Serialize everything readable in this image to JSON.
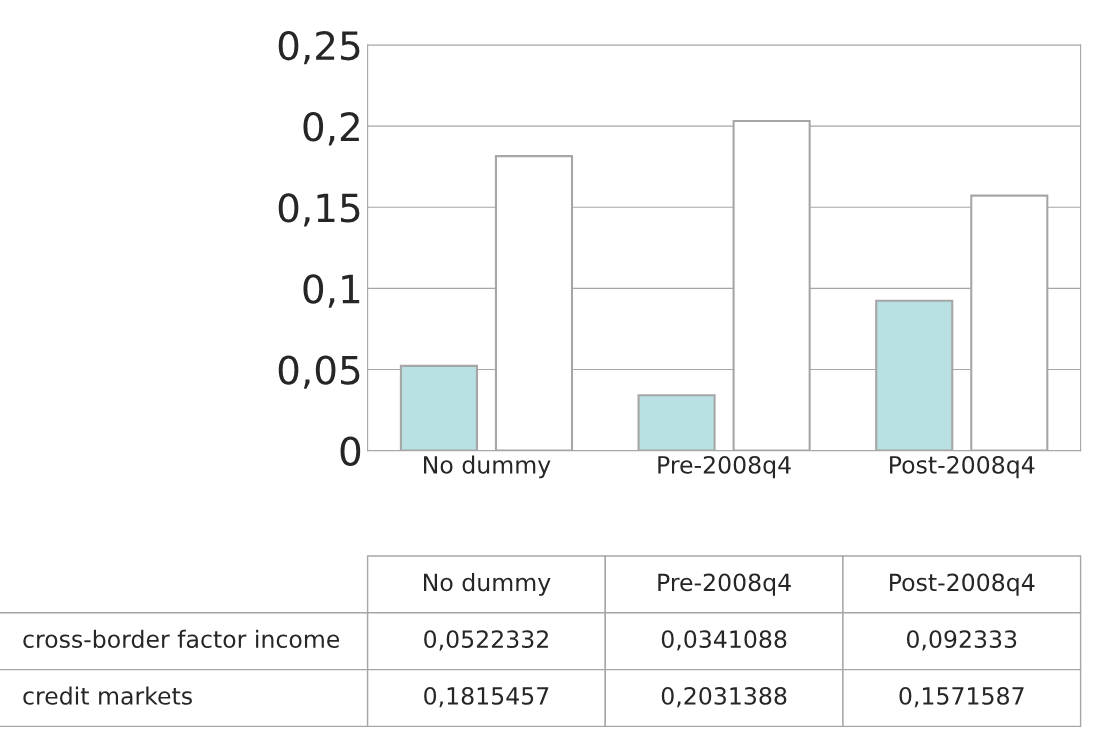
{
  "chart_data": {
    "type": "bar",
    "categories": [
      "No dummy",
      "Pre-2008q4",
      "Post-2008q4"
    ],
    "series": [
      {
        "name": "cross-border factor income",
        "color": "#b9e0e3",
        "values": [
          0.0522332,
          0.0341088,
          0.092333
        ],
        "value_labels": [
          "0,0522332",
          "0,0341088",
          "0,092333"
        ]
      },
      {
        "name": "credit markets",
        "color": "#ffffff",
        "values": [
          0.1815457,
          0.2031388,
          0.1571587
        ],
        "value_labels": [
          "0,1815457",
          "0,2031388",
          "0,1571587"
        ]
      }
    ],
    "ylim": [
      0,
      0.25
    ],
    "yticks": [
      {
        "value": 0,
        "label": "0"
      },
      {
        "value": 0.05,
        "label": "0,05"
      },
      {
        "value": 0.1,
        "label": "0,1"
      },
      {
        "value": 0.15,
        "label": "0,15"
      },
      {
        "value": 0.2,
        "label": "0,2"
      },
      {
        "value": 0.25,
        "label": "0,25"
      }
    ],
    "grid": "y"
  }
}
